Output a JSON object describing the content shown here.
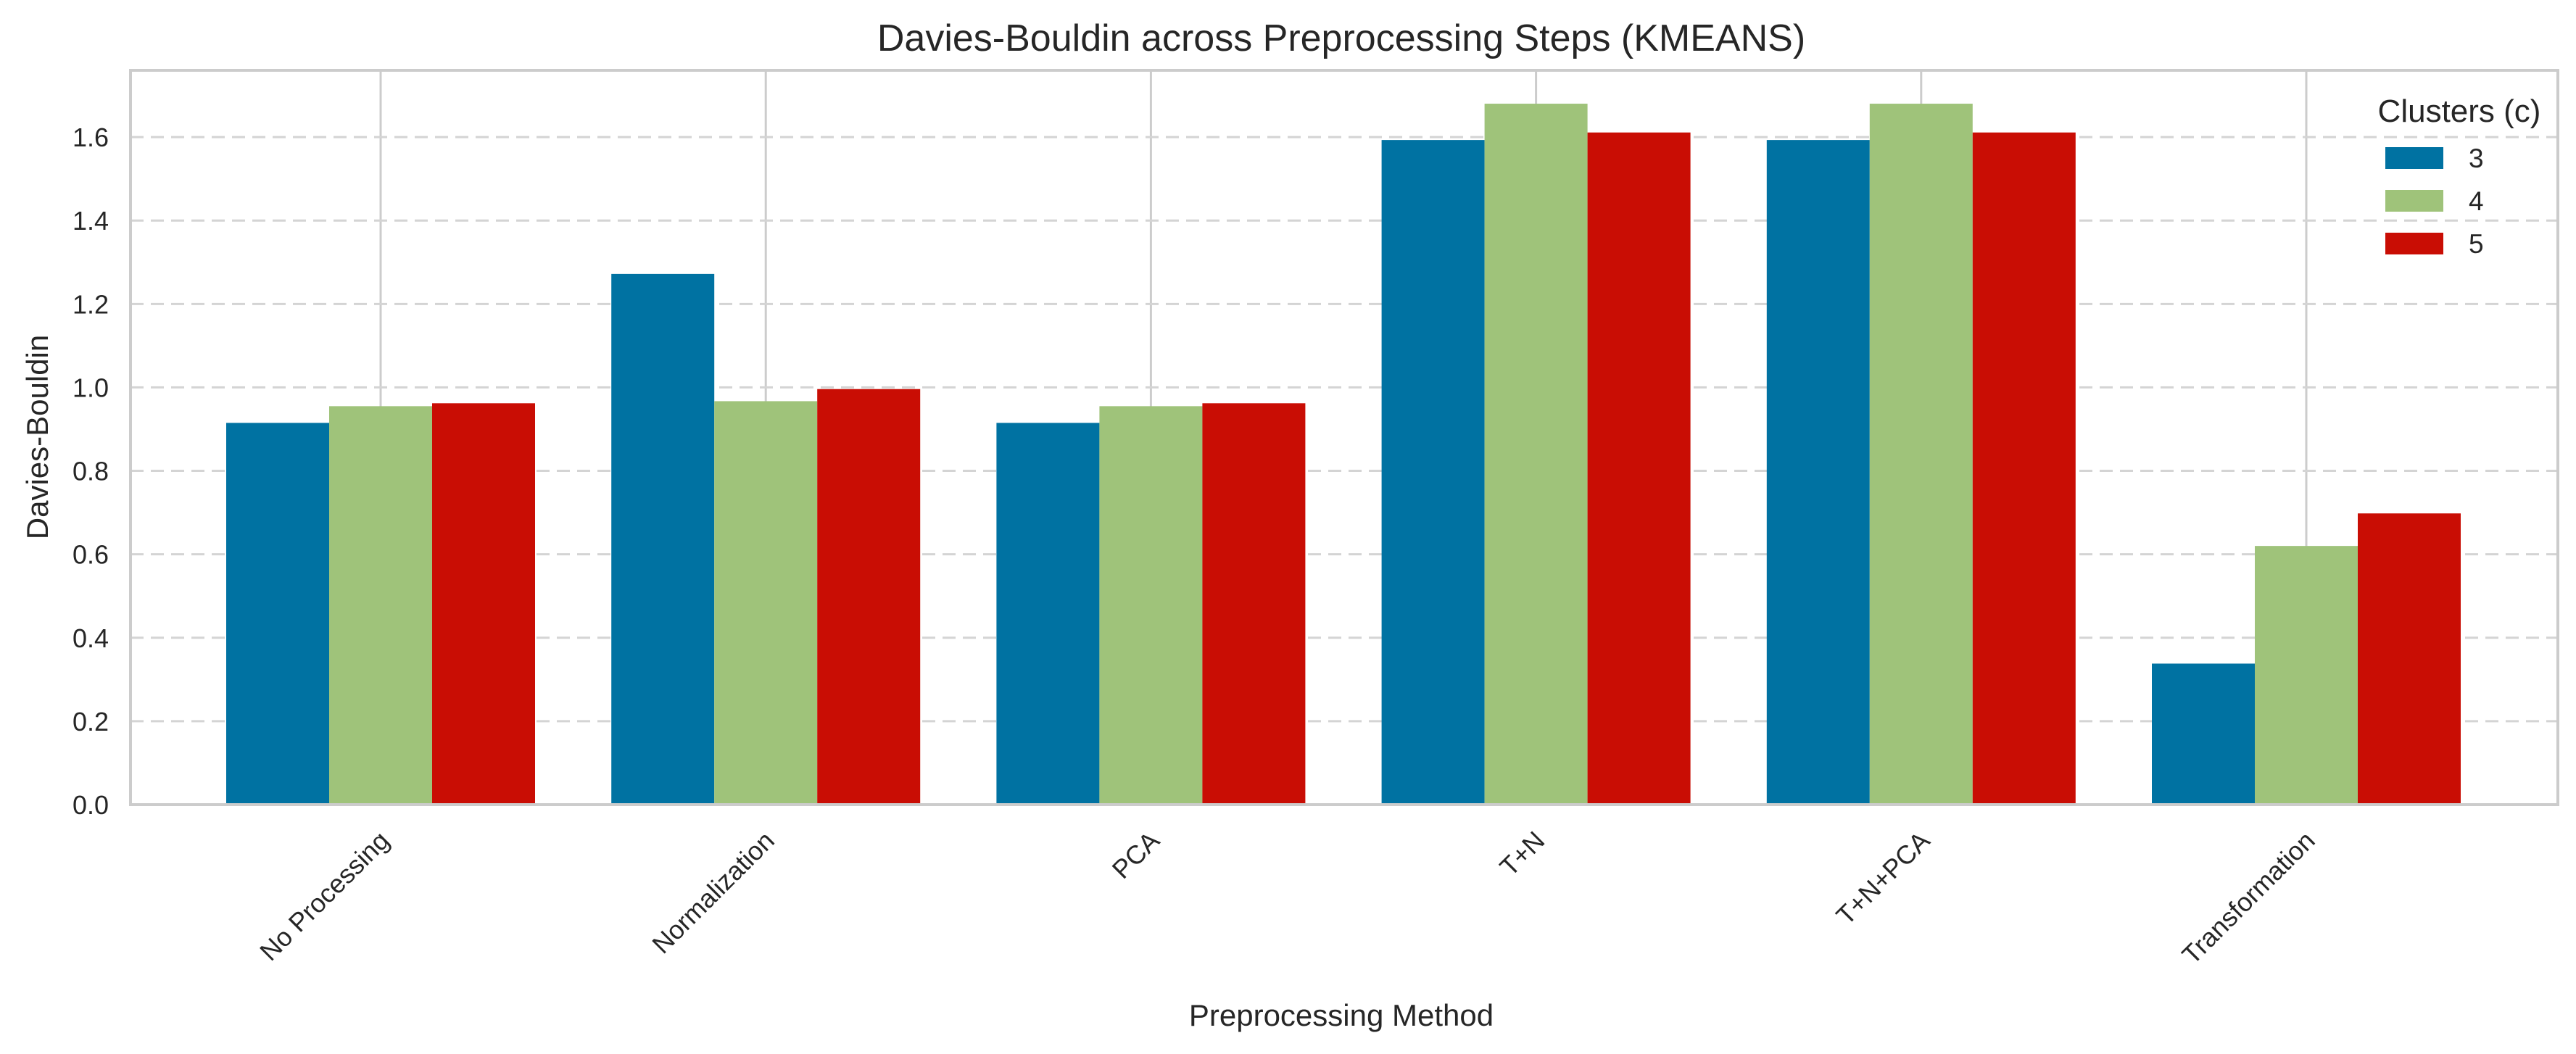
{
  "chart_data": {
    "type": "bar",
    "title": "Davies-Bouldin across Preprocessing Steps (KMEANS)",
    "xlabel": "Preprocessing Method",
    "ylabel": "Davies-Bouldin",
    "categories": [
      "No Processing",
      "Normalization",
      "PCA",
      "T+N",
      "T+N+PCA",
      "Transformation"
    ],
    "series": [
      {
        "name": "3",
        "color": "#0072a2",
        "values": [
          0.915,
          1.272,
          0.915,
          1.593,
          1.593,
          0.338
        ]
      },
      {
        "name": "4",
        "color": "#9fc37a",
        "values": [
          0.955,
          0.967,
          0.955,
          1.68,
          1.68,
          0.62
        ]
      },
      {
        "name": "5",
        "color": "#c90d04",
        "values": [
          0.962,
          0.996,
          0.962,
          1.611,
          1.611,
          0.698
        ]
      }
    ],
    "ylim": [
      0,
      1.76
    ],
    "yticks": [
      "0.0",
      "0.2",
      "0.4",
      "0.6",
      "0.8",
      "1.0",
      "1.2",
      "1.4",
      "1.6"
    ],
    "legend": {
      "title": "Clusters (c)",
      "position": "top-right"
    },
    "grid": {
      "y": true,
      "x_lines_at_categories": true
    }
  }
}
